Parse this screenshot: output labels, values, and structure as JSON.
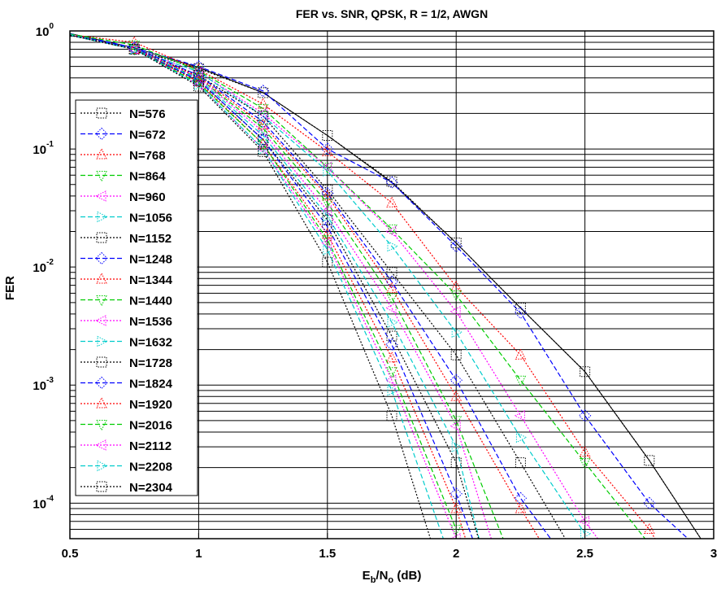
{
  "chart_data": {
    "type": "line",
    "title": "FER vs. SNR, QPSK, R = 1/2, AWGN",
    "xlabel": {
      "main": "E",
      "sub1": "b",
      "mid": "/N",
      "sub2": "o",
      "tail": " (dB)"
    },
    "ylabel": "FER",
    "x_scale": "linear",
    "y_scale": "log",
    "xlim": [
      0.5,
      3
    ],
    "ylim": [
      5e-05,
      1
    ],
    "x_ticks": [
      0.5,
      1,
      1.5,
      2,
      2.5,
      3
    ],
    "x_tick_labels": [
      "0.5",
      "1",
      "1.5",
      "2",
      "2.5",
      "3"
    ],
    "y_ticks": [
      {
        "value": 1,
        "base": "10",
        "exp": "0"
      },
      {
        "value": 0.1,
        "base": "10",
        "exp": "-1"
      },
      {
        "value": 0.01,
        "base": "10",
        "exp": "-2"
      },
      {
        "value": 0.001,
        "base": "10",
        "exp": "-3"
      },
      {
        "value": 0.0001,
        "base": "10",
        "exp": "-4"
      }
    ],
    "grid": true,
    "legend_position": "left",
    "series": [
      {
        "name": "N=576",
        "color": "#000000",
        "dash": "dotted",
        "marker": "square",
        "x": [
          0.5,
          0.75,
          1.0,
          1.25,
          1.5,
          1.75,
          2.0,
          2.25,
          2.5,
          2.75,
          2.95
        ],
        "y": [
          0.95,
          0.7,
          0.48,
          0.3,
          0.13,
          0.053,
          0.016,
          0.0045,
          0.0013,
          0.00023,
          5e-05
        ]
      },
      {
        "name": "N=672",
        "color": "#0000ff",
        "dash": "dashed",
        "marker": "diamond",
        "x": [
          0.5,
          0.75,
          1.0,
          1.25,
          1.5,
          1.75,
          2.0,
          2.25,
          2.5,
          2.75,
          2.9
        ],
        "y": [
          0.95,
          0.72,
          0.5,
          0.31,
          0.1,
          0.052,
          0.015,
          0.0041,
          0.00055,
          0.0001,
          5e-05
        ]
      },
      {
        "name": "N=768",
        "color": "#ff0000",
        "dash": "dotted",
        "marker": "triangle",
        "x": [
          0.5,
          0.75,
          1.0,
          1.25,
          1.5,
          1.75,
          2.0,
          2.25,
          2.5,
          2.75,
          2.8
        ],
        "y": [
          0.93,
          0.8,
          0.47,
          0.24,
          0.095,
          0.035,
          0.0068,
          0.0018,
          0.00027,
          6e-05,
          4e-05
        ]
      },
      {
        "name": "N=864",
        "color": "#00cc00",
        "dash": "dashed",
        "marker": "triangle-down",
        "x": [
          0.5,
          0.75,
          1.0,
          1.25,
          1.5,
          1.75,
          2.0,
          2.25,
          2.5,
          2.75,
          2.78
        ],
        "y": [
          0.94,
          0.76,
          0.46,
          0.22,
          0.07,
          0.021,
          0.0058,
          0.0011,
          0.00022,
          4.5e-05,
          4e-05
        ]
      },
      {
        "name": "N=960",
        "color": "#ff00ff",
        "dash": "dotted",
        "marker": "triangle-left",
        "x": [
          0.5,
          0.75,
          1.0,
          1.25,
          1.5,
          1.75,
          2.0,
          2.25,
          2.5,
          2.55
        ],
        "y": [
          0.93,
          0.7,
          0.45,
          0.2,
          0.07,
          0.02,
          0.0042,
          0.00055,
          7e-05,
          5e-05
        ]
      },
      {
        "name": "N=1056",
        "color": "#00cccc",
        "dash": "dashed",
        "marker": "triangle-right",
        "x": [
          0.5,
          0.75,
          1.0,
          1.25,
          1.5,
          1.75,
          2.0,
          2.25,
          2.5
        ],
        "y": [
          0.93,
          0.7,
          0.45,
          0.19,
          0.065,
          0.015,
          0.0028,
          0.00036,
          5.5e-05
        ]
      },
      {
        "name": "N=1152",
        "color": "#000000",
        "dash": "dotted",
        "marker": "square",
        "x": [
          0.5,
          0.75,
          1.0,
          1.25,
          1.5,
          1.75,
          2.0,
          2.25,
          2.45
        ],
        "y": [
          0.92,
          0.7,
          0.42,
          0.19,
          0.045,
          0.009,
          0.0018,
          0.00022,
          4e-05
        ]
      },
      {
        "name": "N=1248",
        "color": "#0000ff",
        "dash": "dashed",
        "marker": "diamond",
        "x": [
          0.5,
          0.75,
          1.0,
          1.25,
          1.5,
          1.75,
          2.0,
          2.25,
          2.4
        ],
        "y": [
          0.92,
          0.72,
          0.42,
          0.17,
          0.042,
          0.0075,
          0.0011,
          0.00011,
          4e-05
        ]
      },
      {
        "name": "N=1344",
        "color": "#ff0000",
        "dash": "dotted",
        "marker": "triangle",
        "x": [
          0.5,
          0.75,
          1.0,
          1.25,
          1.5,
          1.75,
          2.0,
          2.25,
          2.35
        ],
        "y": [
          0.92,
          0.7,
          0.41,
          0.16,
          0.04,
          0.0066,
          0.0008,
          9e-05,
          4e-05
        ]
      },
      {
        "name": "N=1440",
        "color": "#00cc00",
        "dash": "dashed",
        "marker": "triangle-down",
        "x": [
          0.5,
          0.75,
          1.0,
          1.25,
          1.5,
          1.75,
          2.0,
          2.2
        ],
        "y": [
          0.92,
          0.7,
          0.4,
          0.15,
          0.035,
          0.0055,
          0.0005,
          4e-05
        ]
      },
      {
        "name": "N=1536",
        "color": "#ff00ff",
        "dash": "dotted",
        "marker": "triangle-left",
        "x": [
          0.5,
          0.75,
          1.0,
          1.25,
          1.5,
          1.75,
          2.0,
          2.15
        ],
        "y": [
          0.92,
          0.7,
          0.4,
          0.14,
          0.03,
          0.0045,
          0.00045,
          4e-05
        ]
      },
      {
        "name": "N=1632",
        "color": "#00cccc",
        "dash": "dashed",
        "marker": "triangle-right",
        "x": [
          0.5,
          0.75,
          1.0,
          1.25,
          1.5,
          1.75,
          2.0,
          2.1
        ],
        "y": [
          0.92,
          0.7,
          0.39,
          0.13,
          0.027,
          0.0034,
          0.0003,
          4e-05
        ]
      },
      {
        "name": "N=1728",
        "color": "#000000",
        "dash": "dotted",
        "marker": "square",
        "x": [
          0.5,
          0.75,
          1.0,
          1.25,
          1.5,
          1.75,
          2.0,
          2.1
        ],
        "y": [
          0.92,
          0.7,
          0.38,
          0.12,
          0.025,
          0.0026,
          0.00022,
          4e-05
        ]
      },
      {
        "name": "N=1824",
        "color": "#0000ff",
        "dash": "dashed",
        "marker": "diamond",
        "x": [
          0.5,
          0.75,
          1.0,
          1.25,
          1.5,
          1.75,
          2.0,
          2.08
        ],
        "y": [
          0.92,
          0.7,
          0.38,
          0.12,
          0.022,
          0.0022,
          0.00012,
          4e-05
        ]
      },
      {
        "name": "N=1920",
        "color": "#ff0000",
        "dash": "dotted",
        "marker": "triangle",
        "x": [
          0.5,
          0.75,
          1.0,
          1.25,
          1.5,
          1.75,
          2.0,
          2.05
        ],
        "y": [
          0.92,
          0.7,
          0.37,
          0.11,
          0.019,
          0.0017,
          9e-05,
          4e-05
        ]
      },
      {
        "name": "N=2016",
        "color": "#00cc00",
        "dash": "dashed",
        "marker": "triangle-down",
        "x": [
          0.5,
          0.75,
          1.0,
          1.25,
          1.5,
          1.75,
          2.0
        ],
        "y": [
          0.92,
          0.7,
          0.36,
          0.11,
          0.017,
          0.0013,
          6e-05
        ]
      },
      {
        "name": "N=2112",
        "color": "#ff00ff",
        "dash": "dotted",
        "marker": "triangle-left",
        "x": [
          0.5,
          0.75,
          1.0,
          1.25,
          1.5,
          1.75,
          2.0
        ],
        "y": [
          0.92,
          0.7,
          0.35,
          0.1,
          0.016,
          0.0011,
          5e-05
        ]
      },
      {
        "name": "N=2208",
        "color": "#00cccc",
        "dash": "dashed",
        "marker": "triangle-right",
        "x": [
          0.5,
          0.75,
          1.0,
          1.25,
          1.5,
          1.75,
          1.95
        ],
        "y": [
          0.92,
          0.7,
          0.35,
          0.1,
          0.014,
          0.0009,
          5e-05
        ]
      },
      {
        "name": "N=2304",
        "color": "#000000",
        "dash": "dotted",
        "marker": "square",
        "x": [
          0.5,
          0.75,
          1.0,
          1.25,
          1.5,
          1.75,
          1.9
        ],
        "y": [
          0.92,
          0.7,
          0.34,
          0.095,
          0.011,
          0.00055,
          5e-05
        ]
      }
    ],
    "extra_lines": [
      {
        "color": "#000000",
        "dash": "solid",
        "x": [
          0.5,
          0.75,
          1.0,
          1.25,
          1.5,
          1.75,
          2.0,
          2.25,
          2.5,
          2.75,
          2.95
        ],
        "y": [
          0.95,
          0.72,
          0.49,
          0.3,
          0.13,
          0.052,
          0.016,
          0.0045,
          0.0013,
          0.00023,
          5e-05
        ]
      }
    ]
  }
}
